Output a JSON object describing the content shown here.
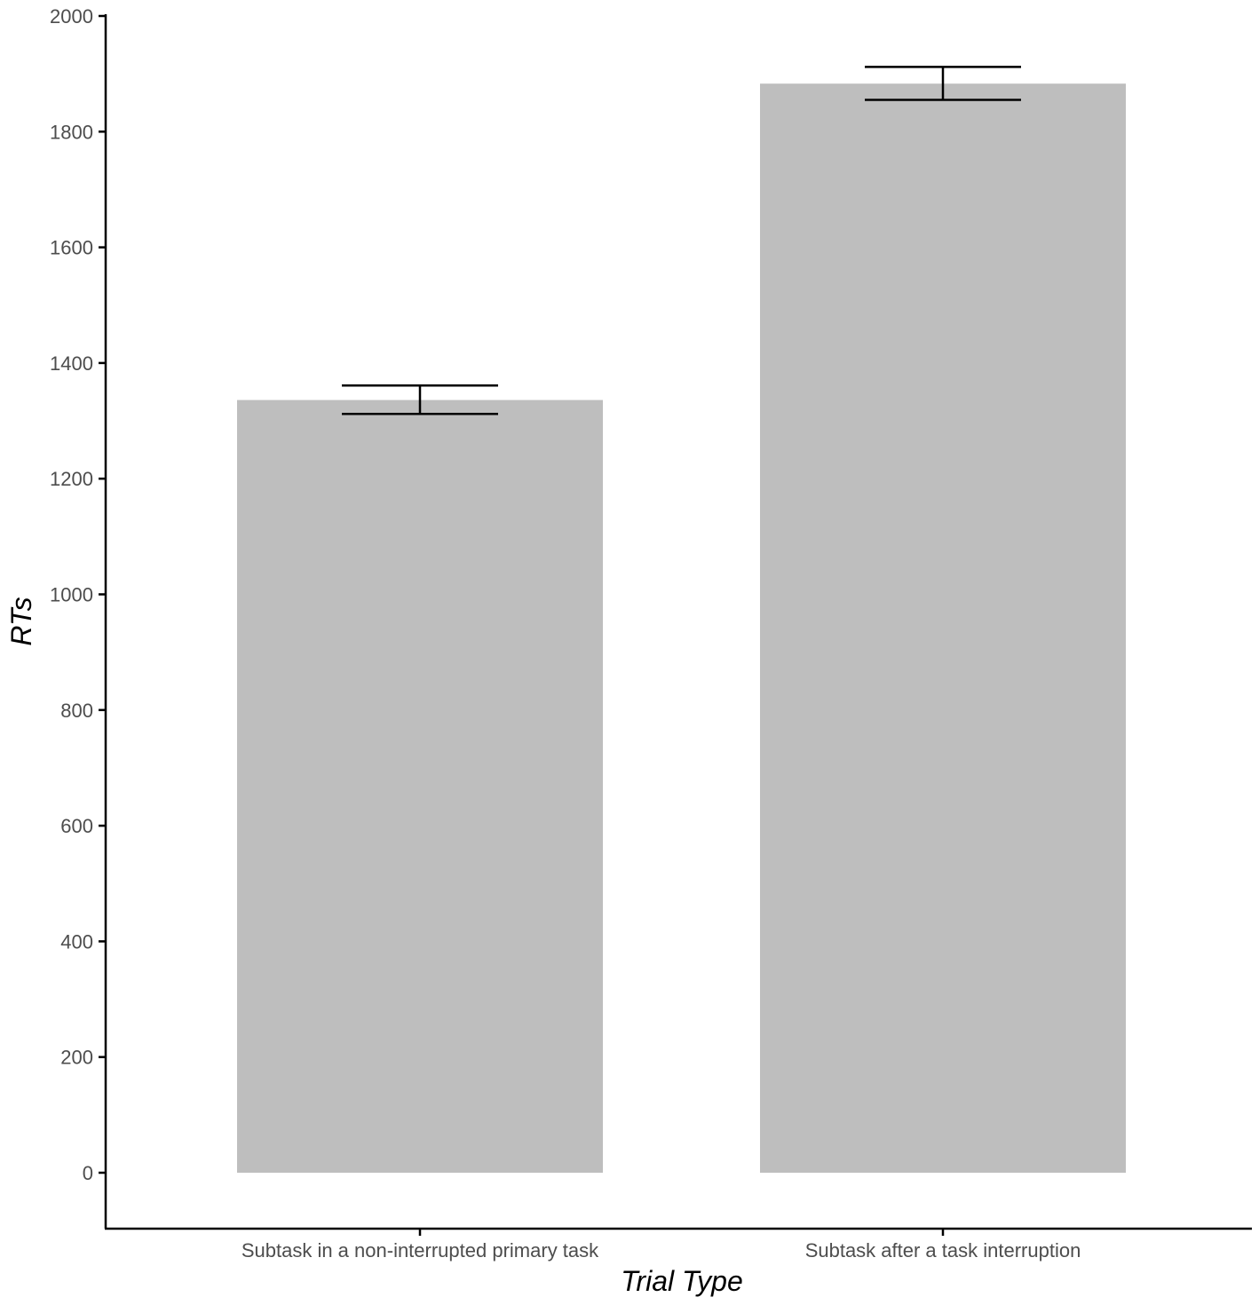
{
  "chart_data": {
    "type": "bar",
    "title": "",
    "xlabel": "Trial Type",
    "ylabel": "RTs",
    "categories": [
      "Subtask in a non-interrupted primary task",
      "Subtask after a task interruption"
    ],
    "values": [
      1336,
      1883
    ],
    "error_bars": [
      {
        "low": 1312,
        "high": 1361
      },
      {
        "low": 1855,
        "high": 1912
      }
    ],
    "ylim": [
      -95,
      2000
    ],
    "yticks": [
      0,
      200,
      400,
      600,
      800,
      1000,
      1200,
      1400,
      1600,
      1800,
      2000
    ],
    "grid": false,
    "legend": "none",
    "colors": {
      "bar": "#bebebe",
      "axis": "#000000",
      "tick_text": "#4d4d4d",
      "error_bar": "#000000"
    }
  }
}
